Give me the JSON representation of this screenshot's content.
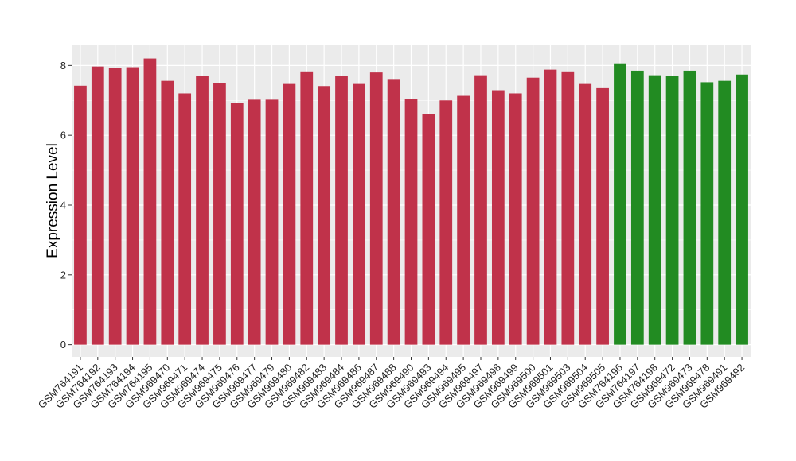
{
  "chart_data": {
    "type": "bar",
    "title": "",
    "xlabel": "",
    "ylabel": "Expression Level",
    "ylim": [
      -0.35,
      8.6
    ],
    "yticks": [
      0,
      2,
      4,
      6,
      8
    ],
    "grid": true,
    "legend": "none",
    "categories": [
      "GSM764191",
      "GSM764192",
      "GSM764193",
      "GSM764194",
      "GSM764195",
      "GSM969470",
      "GSM969471",
      "GSM969474",
      "GSM969475",
      "GSM969476",
      "GSM969477",
      "GSM969479",
      "GSM969480",
      "GSM969482",
      "GSM969483",
      "GSM969484",
      "GSM969486",
      "GSM969487",
      "GSM969488",
      "GSM969490",
      "GSM969493",
      "GSM969494",
      "GSM969495",
      "GSM969497",
      "GSM969498",
      "GSM969499",
      "GSM969500",
      "GSM969501",
      "GSM969503",
      "GSM969504",
      "GSM969505",
      "GSM764196",
      "GSM764197",
      "GSM764198",
      "GSM969472",
      "GSM969473",
      "GSM969478",
      "GSM969491",
      "GSM969492"
    ],
    "values": [
      7.42,
      7.97,
      7.92,
      7.95,
      8.2,
      7.56,
      7.2,
      7.7,
      7.49,
      6.93,
      7.02,
      7.02,
      7.47,
      7.83,
      7.41,
      7.7,
      7.47,
      7.8,
      7.59,
      7.04,
      6.61,
      7.0,
      7.13,
      7.72,
      7.29,
      7.2,
      7.65,
      7.88,
      7.83,
      7.47,
      7.35,
      8.06,
      7.85,
      7.72,
      7.7,
      7.85,
      7.52,
      7.56,
      7.74
    ],
    "groups": [
      "red",
      "red",
      "red",
      "red",
      "red",
      "red",
      "red",
      "red",
      "red",
      "red",
      "red",
      "red",
      "red",
      "red",
      "red",
      "red",
      "red",
      "red",
      "red",
      "red",
      "red",
      "red",
      "red",
      "red",
      "red",
      "red",
      "red",
      "red",
      "red",
      "red",
      "red",
      "green",
      "green",
      "green",
      "green",
      "green",
      "green",
      "green",
      "green"
    ],
    "colors": {
      "red": "#c0324a",
      "green": "#228b22",
      "panel": "#ebebeb",
      "grid": "#ffffff"
    }
  }
}
